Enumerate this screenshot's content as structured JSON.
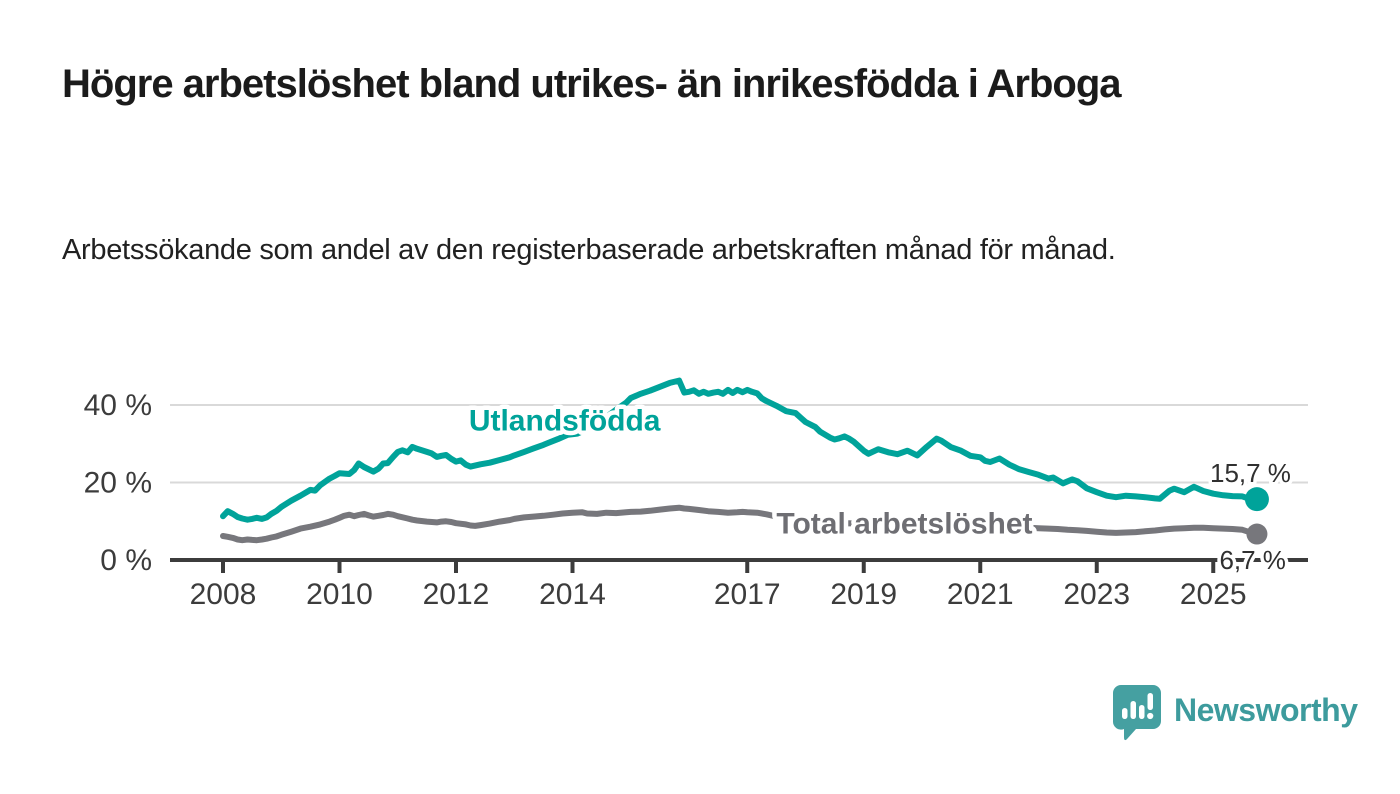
{
  "title": "Högre arbetslöshet bland utrikes- än inrikesfödda i Arboga",
  "subtitle": "Arbetssökande som andel av den registerbaserade arbetskraften månad för månad.",
  "branding": {
    "logo_text": "Newsworthy",
    "logo_icon": "speech-bubble-bar-chart-icon",
    "logo_color": "#3d9b9d"
  },
  "chart_data": {
    "type": "line",
    "unit": "%",
    "grid": "horizontal",
    "xlim": [
      2007.1,
      2026.6
    ],
    "ylim": [
      0,
      48
    ],
    "x_ticks": [
      {
        "year": 2008,
        "label": "2008"
      },
      {
        "year": 2010,
        "label": "2010"
      },
      {
        "year": 2012,
        "label": "2012"
      },
      {
        "year": 2014,
        "label": "2014"
      },
      {
        "year": 2017,
        "label": "2017"
      },
      {
        "year": 2019,
        "label": "2019"
      },
      {
        "year": 2021,
        "label": "2021"
      },
      {
        "year": 2023,
        "label": "2023"
      },
      {
        "year": 2025,
        "label": "2025"
      }
    ],
    "y_ticks": [
      {
        "value": 0,
        "label": "0 %"
      },
      {
        "value": 20,
        "label": "20 %"
      },
      {
        "value": 40,
        "label": "40 %"
      }
    ],
    "colors": {
      "axis": "#3c3c3c",
      "grid": "#d9d9d9",
      "end_label_text": "#303030"
    },
    "series": [
      {
        "name": "Utlandsfödda",
        "color": "#00a39a",
        "label_color": "#00a39a",
        "end_label": "15,7 %",
        "end_value": 15.7,
        "label_at": [
          2012.22,
          33.4
        ],
        "points": [
          [
            2008.0,
            11.3
          ],
          [
            2008.08,
            12.6
          ],
          [
            2008.17,
            11.9
          ],
          [
            2008.25,
            11.1
          ],
          [
            2008.33,
            10.7
          ],
          [
            2008.42,
            10.4
          ],
          [
            2008.5,
            10.6
          ],
          [
            2008.58,
            10.9
          ],
          [
            2008.67,
            10.6
          ],
          [
            2008.75,
            11.0
          ],
          [
            2008.83,
            11.9
          ],
          [
            2008.92,
            12.7
          ],
          [
            2009.0,
            13.7
          ],
          [
            2009.17,
            15.3
          ],
          [
            2009.33,
            16.6
          ],
          [
            2009.5,
            18.1
          ],
          [
            2009.58,
            17.9
          ],
          [
            2009.67,
            19.3
          ],
          [
            2009.83,
            21.0
          ],
          [
            2009.92,
            21.7
          ],
          [
            2010.0,
            22.4
          ],
          [
            2010.17,
            22.2
          ],
          [
            2010.25,
            23.2
          ],
          [
            2010.33,
            24.9
          ],
          [
            2010.42,
            24.0
          ],
          [
            2010.58,
            22.8
          ],
          [
            2010.67,
            23.6
          ],
          [
            2010.75,
            24.9
          ],
          [
            2010.83,
            25.0
          ],
          [
            2010.92,
            26.6
          ],
          [
            2011.0,
            27.9
          ],
          [
            2011.08,
            28.3
          ],
          [
            2011.17,
            27.8
          ],
          [
            2011.25,
            29.2
          ],
          [
            2011.33,
            28.7
          ],
          [
            2011.5,
            27.9
          ],
          [
            2011.58,
            27.5
          ],
          [
            2011.67,
            26.6
          ],
          [
            2011.75,
            26.9
          ],
          [
            2011.83,
            27.1
          ],
          [
            2011.92,
            26.1
          ],
          [
            2012.0,
            25.4
          ],
          [
            2012.08,
            25.7
          ],
          [
            2012.17,
            24.6
          ],
          [
            2012.25,
            24.1
          ],
          [
            2012.42,
            24.7
          ],
          [
            2012.58,
            25.1
          ],
          [
            2012.75,
            25.8
          ],
          [
            2012.92,
            26.5
          ],
          [
            2013.0,
            27.0
          ],
          [
            2013.17,
            27.9
          ],
          [
            2013.33,
            28.8
          ],
          [
            2013.5,
            29.7
          ],
          [
            2013.58,
            30.2
          ],
          [
            2013.75,
            31.2
          ],
          [
            2013.92,
            32.3
          ],
          [
            2014.08,
            32.6
          ],
          [
            2014.25,
            33.8
          ],
          [
            2014.42,
            35.2
          ],
          [
            2014.58,
            36.9
          ],
          [
            2014.75,
            38.8
          ],
          [
            2014.92,
            40.6
          ],
          [
            2015.0,
            41.8
          ],
          [
            2015.17,
            42.9
          ],
          [
            2015.33,
            43.7
          ],
          [
            2015.5,
            44.7
          ],
          [
            2015.67,
            45.7
          ],
          [
            2015.83,
            46.3
          ],
          [
            2015.92,
            43.2
          ],
          [
            2016.0,
            43.4
          ],
          [
            2016.08,
            43.8
          ],
          [
            2016.17,
            42.9
          ],
          [
            2016.25,
            43.4
          ],
          [
            2016.33,
            42.9
          ],
          [
            2016.42,
            43.2
          ],
          [
            2016.5,
            43.4
          ],
          [
            2016.58,
            42.9
          ],
          [
            2016.67,
            43.9
          ],
          [
            2016.75,
            43.1
          ],
          [
            2016.83,
            43.9
          ],
          [
            2016.92,
            43.3
          ],
          [
            2017.0,
            43.9
          ],
          [
            2017.08,
            43.4
          ],
          [
            2017.17,
            43.0
          ],
          [
            2017.25,
            41.7
          ],
          [
            2017.33,
            41.0
          ],
          [
            2017.5,
            39.8
          ],
          [
            2017.67,
            38.4
          ],
          [
            2017.83,
            37.9
          ],
          [
            2017.92,
            36.7
          ],
          [
            2018.0,
            35.6
          ],
          [
            2018.17,
            34.3
          ],
          [
            2018.25,
            33.1
          ],
          [
            2018.42,
            31.6
          ],
          [
            2018.5,
            31.1
          ],
          [
            2018.58,
            31.4
          ],
          [
            2018.67,
            31.9
          ],
          [
            2018.75,
            31.3
          ],
          [
            2018.83,
            30.5
          ],
          [
            2018.92,
            29.3
          ],
          [
            2019.0,
            28.2
          ],
          [
            2019.08,
            27.4
          ],
          [
            2019.25,
            28.6
          ],
          [
            2019.42,
            27.8
          ],
          [
            2019.58,
            27.3
          ],
          [
            2019.75,
            28.2
          ],
          [
            2019.92,
            27.0
          ],
          [
            2020.08,
            29.2
          ],
          [
            2020.25,
            31.3
          ],
          [
            2020.33,
            30.8
          ],
          [
            2020.5,
            29.1
          ],
          [
            2020.67,
            28.2
          ],
          [
            2020.83,
            26.9
          ],
          [
            2021.0,
            26.5
          ],
          [
            2021.08,
            25.6
          ],
          [
            2021.17,
            25.3
          ],
          [
            2021.33,
            26.2
          ],
          [
            2021.5,
            24.6
          ],
          [
            2021.67,
            23.4
          ],
          [
            2021.83,
            22.7
          ],
          [
            2022.0,
            22.0
          ],
          [
            2022.17,
            21.0
          ],
          [
            2022.25,
            21.3
          ],
          [
            2022.42,
            19.8
          ],
          [
            2022.58,
            20.8
          ],
          [
            2022.67,
            20.3
          ],
          [
            2022.83,
            18.5
          ],
          [
            2023.0,
            17.5
          ],
          [
            2023.17,
            16.6
          ],
          [
            2023.33,
            16.2
          ],
          [
            2023.5,
            16.6
          ],
          [
            2023.67,
            16.4
          ],
          [
            2023.83,
            16.2
          ],
          [
            2024.0,
            15.9
          ],
          [
            2024.08,
            15.8
          ],
          [
            2024.25,
            17.9
          ],
          [
            2024.33,
            18.4
          ],
          [
            2024.5,
            17.5
          ],
          [
            2024.67,
            18.9
          ],
          [
            2024.83,
            17.8
          ],
          [
            2025.0,
            17.1
          ],
          [
            2025.17,
            16.7
          ],
          [
            2025.33,
            16.5
          ],
          [
            2025.5,
            16.4
          ],
          [
            2025.58,
            16.0
          ],
          [
            2025.75,
            15.7
          ]
        ]
      },
      {
        "name": "Total arbetslöshet",
        "color": "#77777c",
        "label_color": "#6e6e73",
        "end_label": "6,7 %",
        "end_value": 6.7,
        "label_at": [
          2017.5,
          6.9
        ],
        "points": [
          [
            2008.0,
            6.2
          ],
          [
            2008.08,
            6.0
          ],
          [
            2008.17,
            5.7
          ],
          [
            2008.25,
            5.3
          ],
          [
            2008.33,
            5.1
          ],
          [
            2008.42,
            5.3
          ],
          [
            2008.5,
            5.2
          ],
          [
            2008.58,
            5.1
          ],
          [
            2008.67,
            5.3
          ],
          [
            2008.75,
            5.5
          ],
          [
            2008.83,
            5.8
          ],
          [
            2008.92,
            6.1
          ],
          [
            2009.0,
            6.5
          ],
          [
            2009.17,
            7.3
          ],
          [
            2009.33,
            8.1
          ],
          [
            2009.5,
            8.6
          ],
          [
            2009.67,
            9.2
          ],
          [
            2009.83,
            9.9
          ],
          [
            2009.92,
            10.4
          ],
          [
            2010.0,
            10.9
          ],
          [
            2010.08,
            11.4
          ],
          [
            2010.17,
            11.7
          ],
          [
            2010.25,
            11.3
          ],
          [
            2010.33,
            11.6
          ],
          [
            2010.42,
            11.9
          ],
          [
            2010.5,
            11.5
          ],
          [
            2010.58,
            11.2
          ],
          [
            2010.67,
            11.4
          ],
          [
            2010.75,
            11.6
          ],
          [
            2010.83,
            11.9
          ],
          [
            2010.92,
            11.7
          ],
          [
            2011.0,
            11.3
          ],
          [
            2011.17,
            10.7
          ],
          [
            2011.25,
            10.4
          ],
          [
            2011.33,
            10.2
          ],
          [
            2011.5,
            9.9
          ],
          [
            2011.67,
            9.7
          ],
          [
            2011.75,
            9.9
          ],
          [
            2011.83,
            10.0
          ],
          [
            2011.92,
            9.8
          ],
          [
            2012.0,
            9.5
          ],
          [
            2012.17,
            9.2
          ],
          [
            2012.25,
            8.9
          ],
          [
            2012.33,
            8.8
          ],
          [
            2012.42,
            9.0
          ],
          [
            2012.58,
            9.4
          ],
          [
            2012.75,
            9.9
          ],
          [
            2012.92,
            10.3
          ],
          [
            2013.0,
            10.6
          ],
          [
            2013.17,
            11.0
          ],
          [
            2013.33,
            11.2
          ],
          [
            2013.5,
            11.4
          ],
          [
            2013.67,
            11.7
          ],
          [
            2013.83,
            12.0
          ],
          [
            2014.0,
            12.2
          ],
          [
            2014.17,
            12.3
          ],
          [
            2014.25,
            12.0
          ],
          [
            2014.42,
            11.9
          ],
          [
            2014.58,
            12.2
          ],
          [
            2014.75,
            12.1
          ],
          [
            2014.92,
            12.3
          ],
          [
            2015.0,
            12.4
          ],
          [
            2015.17,
            12.5
          ],
          [
            2015.33,
            12.7
          ],
          [
            2015.5,
            13.0
          ],
          [
            2015.67,
            13.3
          ],
          [
            2015.83,
            13.5
          ],
          [
            2015.92,
            13.3
          ],
          [
            2016.0,
            13.2
          ],
          [
            2016.17,
            12.9
          ],
          [
            2016.33,
            12.6
          ],
          [
            2016.5,
            12.4
          ],
          [
            2016.67,
            12.2
          ],
          [
            2016.83,
            12.3
          ],
          [
            2016.92,
            12.4
          ],
          [
            2017.0,
            12.3
          ],
          [
            2017.17,
            12.2
          ],
          [
            2017.33,
            11.8
          ],
          [
            2017.5,
            11.2
          ],
          [
            2017.67,
            10.8
          ],
          [
            2017.83,
            10.3
          ],
          [
            2018.0,
            9.9
          ],
          [
            2018.25,
            9.6
          ],
          [
            2018.5,
            9.4
          ],
          [
            2018.75,
            9.5
          ],
          [
            2019.0,
            9.3
          ],
          [
            2019.25,
            9.2
          ],
          [
            2019.5,
            9.0
          ],
          [
            2019.75,
            9.1
          ],
          [
            2020.0,
            9.5
          ],
          [
            2020.25,
            10.3
          ],
          [
            2020.5,
            10.0
          ],
          [
            2020.75,
            9.6
          ],
          [
            2021.0,
            9.2
          ],
          [
            2021.25,
            8.9
          ],
          [
            2021.5,
            8.6
          ],
          [
            2021.75,
            8.4
          ],
          [
            2022.0,
            8.2
          ],
          [
            2022.17,
            8.1
          ],
          [
            2022.33,
            8.0
          ],
          [
            2022.5,
            7.8
          ],
          [
            2022.67,
            7.7
          ],
          [
            2022.83,
            7.5
          ],
          [
            2023.0,
            7.3
          ],
          [
            2023.17,
            7.1
          ],
          [
            2023.33,
            7.0
          ],
          [
            2023.5,
            7.1
          ],
          [
            2023.67,
            7.2
          ],
          [
            2023.83,
            7.4
          ],
          [
            2024.0,
            7.6
          ],
          [
            2024.17,
            7.9
          ],
          [
            2024.33,
            8.1
          ],
          [
            2024.5,
            8.2
          ],
          [
            2024.67,
            8.3
          ],
          [
            2024.83,
            8.3
          ],
          [
            2025.0,
            8.2
          ],
          [
            2025.17,
            8.1
          ],
          [
            2025.33,
            8.0
          ],
          [
            2025.5,
            7.8
          ],
          [
            2025.58,
            7.4
          ],
          [
            2025.75,
            6.7
          ]
        ]
      }
    ]
  }
}
